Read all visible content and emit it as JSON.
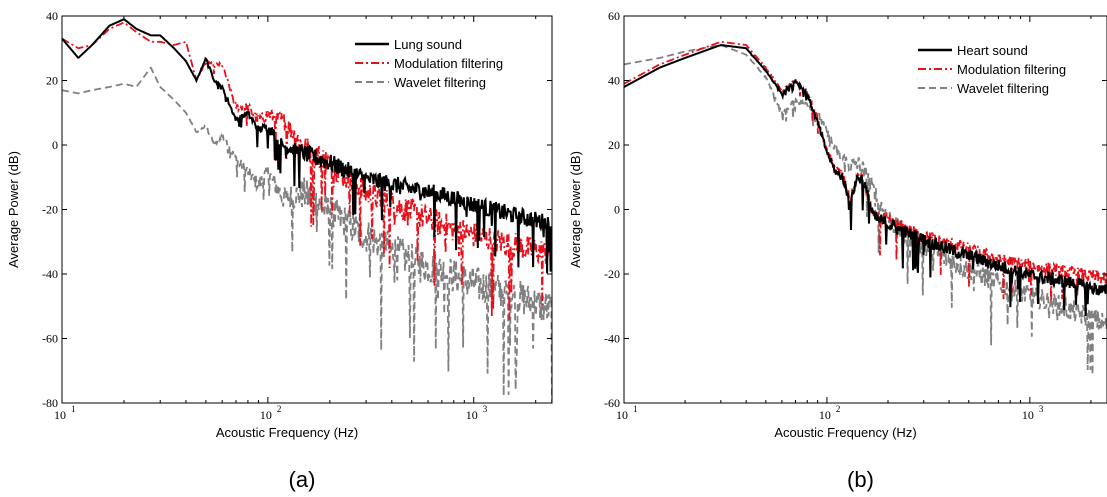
{
  "chart_data": [
    {
      "type": "line",
      "caption": "(a)",
      "xlabel": "Acoustic Frequency (Hz)",
      "ylabel": "Average Power (dB)",
      "xscale": "log",
      "xlim": [
        10,
        2400
      ],
      "ylim": [
        -80,
        40
      ],
      "xticks": [
        {
          "base": "10",
          "exp": "1",
          "value": 10
        },
        {
          "base": "10",
          "exp": "2",
          "value": 100
        },
        {
          "base": "10",
          "exp": "3",
          "value": 1000
        }
      ],
      "yticks": [
        -80,
        -60,
        -40,
        -20,
        0,
        20,
        40
      ],
      "legend_position": "top-right",
      "series": [
        {
          "name": "Lung sound",
          "color": "#000000",
          "style": "solid",
          "x": [
            10,
            12,
            14,
            17,
            20,
            23,
            27,
            30,
            35,
            40,
            45,
            50,
            55,
            60,
            70,
            80,
            90,
            100,
            120,
            150,
            200,
            300,
            500,
            700,
            1000,
            1500,
            2400
          ],
          "y": [
            33,
            27,
            31,
            37,
            39,
            36,
            34,
            34,
            30,
            26,
            20,
            27,
            20,
            18,
            8,
            10,
            5,
            6,
            0,
            -2,
            -5,
            -10,
            -13,
            -15,
            -18,
            -21,
            -24
          ],
          "jitter": 4
        },
        {
          "name": "Modulation filtering",
          "color": "#e8101a",
          "style": "dashdot",
          "x": [
            10,
            12,
            14,
            17,
            20,
            23,
            27,
            30,
            35,
            40,
            45,
            50,
            55,
            60,
            70,
            80,
            90,
            100,
            120,
            150,
            200,
            300,
            500,
            700,
            1000,
            1500,
            2400
          ],
          "y": [
            33,
            30,
            31,
            36,
            38,
            35,
            32,
            32,
            31,
            32,
            20,
            26,
            25,
            25,
            12,
            12,
            8,
            10,
            8,
            0,
            -5,
            -14,
            -20,
            -24,
            -27,
            -30,
            -33
          ],
          "jitter": 6
        },
        {
          "name": "Wavelet filtering",
          "color": "#808080",
          "style": "dashed",
          "x": [
            10,
            12,
            14,
            17,
            20,
            23,
            27,
            30,
            35,
            40,
            45,
            50,
            55,
            60,
            70,
            80,
            90,
            100,
            120,
            150,
            200,
            300,
            500,
            700,
            1000,
            1500,
            2400
          ],
          "y": [
            17,
            16,
            17,
            18,
            19,
            18,
            24,
            18,
            14,
            10,
            4,
            6,
            0,
            3,
            -4,
            -8,
            -12,
            -8,
            -16,
            -14,
            -20,
            -27,
            -35,
            -38,
            -42,
            -45,
            -50
          ],
          "jitter": 8
        }
      ]
    },
    {
      "type": "line",
      "caption": "(b)",
      "xlabel": "Acoustic Frequency (Hz)",
      "ylabel": "Average Power (dB)",
      "xscale": "log",
      "xlim": [
        10,
        2400
      ],
      "ylim": [
        -60,
        60
      ],
      "xticks": [
        {
          "base": "10",
          "exp": "1",
          "value": 10
        },
        {
          "base": "10",
          "exp": "2",
          "value": 100
        },
        {
          "base": "10",
          "exp": "3",
          "value": 1000
        }
      ],
      "yticks": [
        -60,
        -40,
        -20,
        0,
        20,
        40,
        60
      ],
      "legend_position": "top-right",
      "series": [
        {
          "name": "Heart sound",
          "color": "#000000",
          "style": "solid",
          "x": [
            10,
            15,
            20,
            30,
            40,
            50,
            60,
            70,
            80,
            90,
            100,
            110,
            120,
            130,
            140,
            150,
            170,
            200,
            250,
            300,
            400,
            500,
            700,
            1000,
            1500,
            2400
          ],
          "y": [
            38,
            44,
            47,
            51,
            50,
            43,
            36,
            40,
            36,
            27,
            18,
            12,
            10,
            2,
            10,
            10,
            -2,
            -4,
            -7,
            -9,
            -12,
            -14,
            -17,
            -20,
            -22,
            -25
          ],
          "jitter": 3
        },
        {
          "name": "Modulation filtering",
          "color": "#e8101a",
          "style": "dashdot",
          "x": [
            10,
            15,
            20,
            30,
            40,
            50,
            60,
            70,
            80,
            90,
            100,
            110,
            120,
            130,
            140,
            150,
            170,
            200,
            250,
            300,
            400,
            500,
            700,
            1000,
            1500,
            2400
          ],
          "y": [
            39,
            45,
            48,
            52,
            51,
            44,
            37,
            40,
            36,
            28,
            18,
            13,
            11,
            3,
            10,
            10,
            -2,
            -3,
            -6,
            -8,
            -10,
            -12,
            -15,
            -17,
            -19,
            -21
          ],
          "jitter": 3
        },
        {
          "name": "Wavelet filtering",
          "color": "#808080",
          "style": "dashed",
          "x": [
            10,
            15,
            20,
            30,
            40,
            50,
            60,
            70,
            80,
            90,
            100,
            110,
            120,
            130,
            140,
            150,
            170,
            200,
            250,
            300,
            400,
            500,
            700,
            1000,
            1500,
            2400
          ],
          "y": [
            45,
            47,
            49,
            51,
            48,
            41,
            30,
            34,
            33,
            30,
            24,
            19,
            16,
            14,
            15,
            13,
            6,
            -2,
            -8,
            -11,
            -15,
            -18,
            -22,
            -26,
            -30,
            -35
          ],
          "jitter": 5
        }
      ]
    }
  ]
}
